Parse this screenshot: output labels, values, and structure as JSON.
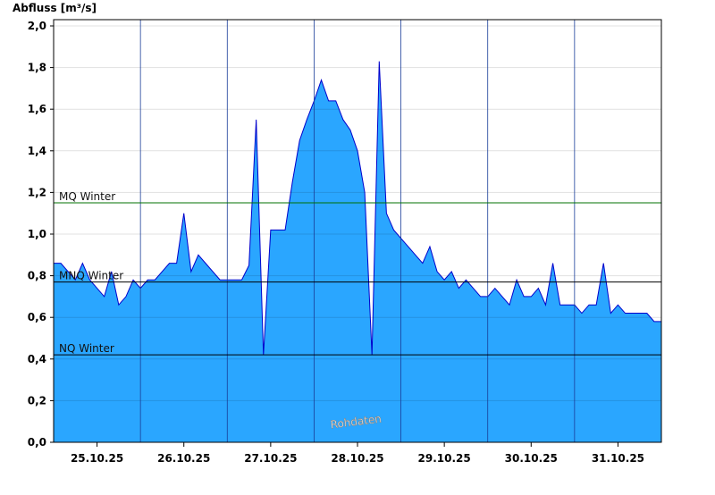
{
  "chart_data": {
    "type": "area",
    "y_label": "Abfluss [m³/s]",
    "watermark": "Rohdaten",
    "color": "#2aa6ff",
    "line_color": "#0000cc",
    "x": [
      0,
      2,
      4,
      6,
      8,
      10,
      12,
      14,
      16,
      18,
      20,
      22,
      24,
      26,
      28,
      30,
      32,
      34,
      36,
      38,
      40,
      42,
      44,
      46,
      48,
      50,
      52,
      54,
      56,
      58,
      60,
      62,
      64,
      66,
      68,
      70,
      72,
      74,
      76,
      78,
      80,
      82,
      84,
      86,
      88,
      90,
      92,
      94,
      96,
      98,
      100,
      102,
      104,
      106,
      108,
      110,
      112,
      114,
      116,
      118,
      120,
      122,
      124,
      126,
      128,
      130,
      132,
      134,
      136,
      138,
      140,
      142,
      144,
      146,
      148,
      150,
      152,
      154,
      156,
      158,
      160,
      162,
      164,
      166,
      168
    ],
    "values": [
      0.86,
      0.86,
      0.82,
      0.78,
      0.86,
      0.78,
      0.74,
      0.7,
      0.82,
      0.66,
      0.7,
      0.78,
      0.74,
      0.78,
      0.78,
      0.82,
      0.86,
      0.86,
      1.1,
      0.82,
      0.9,
      0.86,
      0.82,
      0.78,
      0.78,
      0.78,
      0.78,
      0.85,
      1.55,
      0.42,
      1.02,
      1.02,
      1.02,
      1.25,
      1.45,
      1.55,
      1.64,
      1.74,
      1.64,
      1.64,
      1.55,
      1.5,
      1.4,
      1.2,
      0.42,
      1.83,
      1.1,
      1.02,
      0.98,
      0.94,
      0.9,
      0.86,
      0.94,
      0.82,
      0.78,
      0.82,
      0.74,
      0.78,
      0.74,
      0.7,
      0.7,
      0.74,
      0.7,
      0.66,
      0.78,
      0.7,
      0.7,
      0.74,
      0.66,
      0.86,
      0.66,
      0.66,
      0.66,
      0.62,
      0.66,
      0.66,
      0.86,
      0.62,
      0.66,
      0.62,
      0.62,
      0.62,
      0.62,
      0.58,
      0.58
    ],
    "xlim": [
      0,
      168
    ],
    "xticks": [
      {
        "value": 12,
        "label": "25.10.25"
      },
      {
        "value": 36,
        "label": "26.10.25"
      },
      {
        "value": 60,
        "label": "27.10.25"
      },
      {
        "value": 84,
        "label": "28.10.25"
      },
      {
        "value": 108,
        "label": "29.10.25"
      },
      {
        "value": 132,
        "label": "30.10.25"
      },
      {
        "value": 156,
        "label": "31.10.25"
      }
    ],
    "ylim": [
      0,
      2.03
    ],
    "yticks": [
      {
        "value": 0,
        "label": "0,0"
      },
      {
        "value": 0.2,
        "label": "0,2"
      },
      {
        "value": 0.4,
        "label": "0,4"
      },
      {
        "value": 0.6,
        "label": "0,6"
      },
      {
        "value": 0.8,
        "label": "0,8"
      },
      {
        "value": 1.0,
        "label": "1,0"
      },
      {
        "value": 1.2,
        "label": "1,2"
      },
      {
        "value": 1.4,
        "label": "1,4"
      },
      {
        "value": 1.6,
        "label": "1,6"
      },
      {
        "value": 1.8,
        "label": "1,8"
      },
      {
        "value": 2.0,
        "label": "2,0"
      }
    ],
    "grid": true,
    "hlines": [
      {
        "label": "MQ Winter",
        "value": 1.15,
        "color": "#007000"
      },
      {
        "label": "MNQ Winter",
        "value": 0.77,
        "color": "#000000"
      },
      {
        "label": "NQ Winter",
        "value": 0.42,
        "color": "#000000"
      }
    ]
  }
}
